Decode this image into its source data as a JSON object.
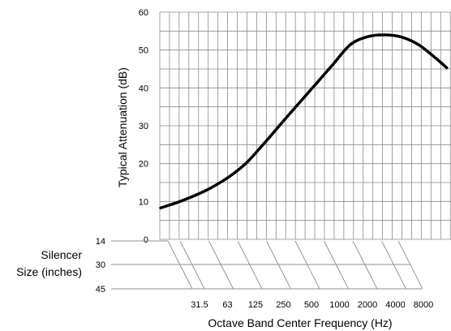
{
  "chart_data": {
    "type": "line",
    "title": "",
    "xlabel": "Octave Band Center Frequency (Hz)",
    "ylabel": "Typical Attenuation (dB)",
    "ylim": [
      0,
      60
    ],
    "y_ticks": [
      "0",
      "10",
      "20",
      "30",
      "40",
      "50",
      "60"
    ],
    "x_categories": [
      "31.5",
      "63",
      "125",
      "250",
      "500",
      "1000",
      "2000",
      "4000",
      "8000"
    ],
    "grid": true,
    "series": [
      {
        "name": "",
        "color": "#000000",
        "points": [
          {
            "x": 0.0,
            "y": 8.3
          },
          {
            "x": 0.5,
            "y": 9.8
          },
          {
            "x": 1.0,
            "y": 11.6
          },
          {
            "x": 1.5,
            "y": 13.8
          },
          {
            "x": 2.0,
            "y": 16.6
          },
          {
            "x": 2.5,
            "y": 20.3
          },
          {
            "x": 3.0,
            "y": 25.3
          },
          {
            "x": 3.5,
            "y": 30.6
          },
          {
            "x": 4.0,
            "y": 35.8
          },
          {
            "x": 4.5,
            "y": 41.0
          },
          {
            "x": 5.0,
            "y": 46.2
          },
          {
            "x": 5.5,
            "y": 51.4
          },
          {
            "x": 6.0,
            "y": 53.5
          },
          {
            "x": 6.5,
            "y": 54.0
          },
          {
            "x": 7.0,
            "y": 53.4
          },
          {
            "x": 7.5,
            "y": 51.3
          },
          {
            "x": 8.0,
            "y": 47.7
          },
          {
            "x": 8.3,
            "y": 45.3
          }
        ]
      }
    ],
    "silencer_size": {
      "title_line1": "Silencer",
      "title_line2": "Size (inches)",
      "rows": [
        "14",
        "30",
        "45"
      ]
    }
  }
}
